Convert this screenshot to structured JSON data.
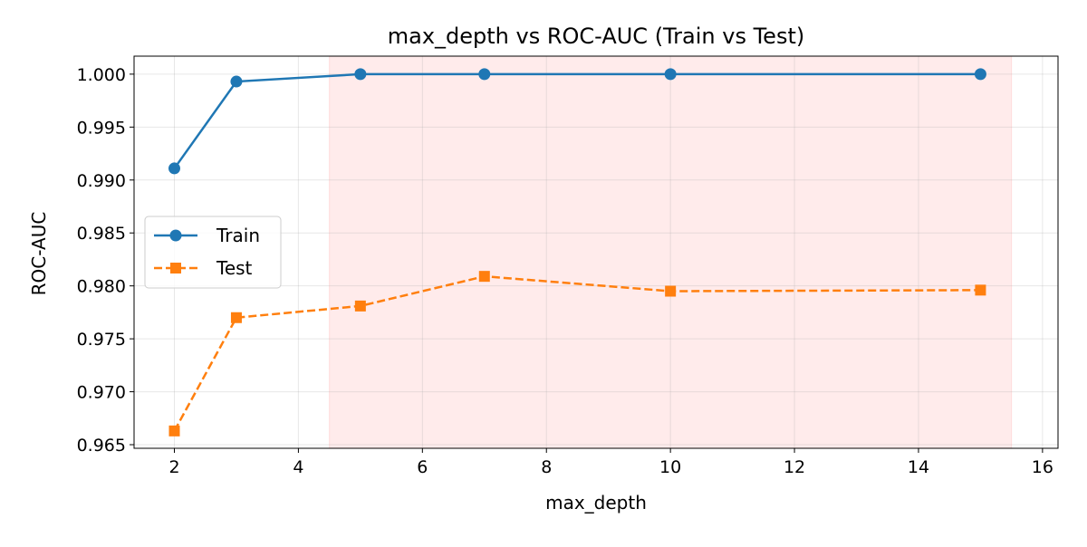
{
  "chart_data": {
    "type": "line",
    "title": "max_depth vs ROC-AUC (Train vs Test)",
    "xlabel": "max_depth",
    "ylabel": "ROC-AUC",
    "xlim": [
      1.35,
      16.25
    ],
    "ylim": [
      0.96466,
      1.0017
    ],
    "xticks": [
      2,
      4,
      6,
      8,
      10,
      12,
      14,
      16
    ],
    "yticks": [
      0.965,
      0.97,
      0.975,
      0.98,
      0.985,
      0.99,
      0.995,
      1.0
    ],
    "ytick_labels": [
      "0.965",
      "0.970",
      "0.975",
      "0.980",
      "0.985",
      "0.990",
      "0.995",
      "1.000"
    ],
    "grid": true,
    "legend_placement": "center-left",
    "shaded_region": {
      "x": [
        4.5,
        15.5
      ],
      "color": "#ffcccc"
    },
    "x": [
      2,
      3,
      5,
      7,
      10,
      15
    ],
    "series": [
      {
        "name": "Train",
        "values": [
          0.9911,
          0.9993,
          1.0,
          1.0,
          1.0,
          1.0
        ],
        "color": "#1f77b4",
        "marker": "circle",
        "linestyle": "solid"
      },
      {
        "name": "Test",
        "values": [
          0.9663,
          0.977,
          0.9781,
          0.9809,
          0.9795,
          0.9796
        ],
        "color": "#ff7f0e",
        "marker": "square",
        "linestyle": "dashed"
      }
    ]
  }
}
